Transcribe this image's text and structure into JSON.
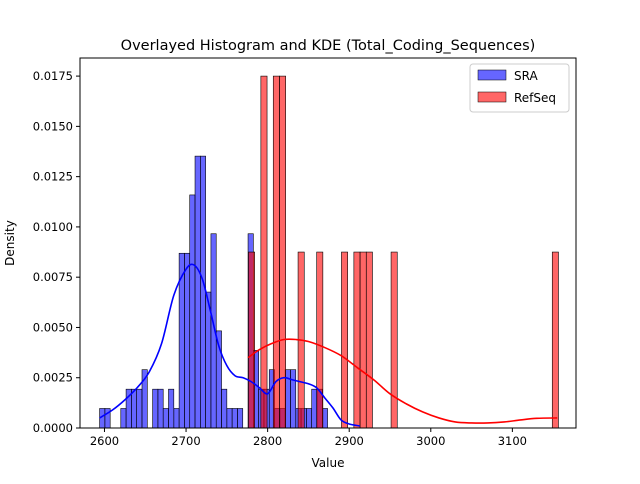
{
  "chart_data": {
    "type": "bar",
    "title": "Overlayed Histogram and KDE (Total_Coding_Sequences)",
    "xlabel": "Value",
    "ylabel": "Density",
    "xlim": [
      2570,
      3178
    ],
    "ylim": [
      0,
      0.0184
    ],
    "x_ticks": [
      2600,
      2700,
      2800,
      2900,
      3000,
      3100
    ],
    "x_tick_labels": [
      "2600",
      "2700",
      "2800",
      "2900",
      "3000",
      "3100"
    ],
    "y_ticks": [
      0,
      0.0025,
      0.005,
      0.0075,
      0.01,
      0.0125,
      0.015,
      0.0175
    ],
    "y_tick_labels": [
      "0.0000",
      "0.0025",
      "0.0050",
      "0.0075",
      "0.0100",
      "0.0125",
      "0.0150",
      "0.0175"
    ],
    "legend_position": "top-right",
    "series": [
      {
        "name": "SRA",
        "kind": "histogram",
        "color": "#0000ff",
        "fill_opacity": 0.6,
        "bin_width": 6.5,
        "bin_starts": [
          2594,
          2600.5,
          2620,
          2626.5,
          2633,
          2639.5,
          2646,
          2652.5,
          2659,
          2665.5,
          2672,
          2678.5,
          2685,
          2691.5,
          2698,
          2704.5,
          2711,
          2717.5,
          2724,
          2730.5,
          2737,
          2743.5,
          2750,
          2756.5,
          2763,
          2769.5,
          2776,
          2782.5,
          2789,
          2795.5,
          2802,
          2808.5,
          2815,
          2821.5,
          2828,
          2834.5,
          2841,
          2847.5,
          2854,
          2860.5,
          2867
        ],
        "values": [
          0.00097,
          0.00097,
          0.00097,
          0.00193,
          0.00193,
          0.00193,
          0.0029,
          0.0,
          0.00193,
          0.00193,
          0.00097,
          0.00193,
          0.00097,
          0.00869,
          0.00869,
          0.01159,
          0.01352,
          0.01352,
          0.00676,
          0.00966,
          0.00483,
          0.00193,
          0.00097,
          0.00097,
          0.00097,
          0.0,
          0.00966,
          0.00386,
          0.00193,
          0.00193,
          0.0029,
          0.00097,
          0.00097,
          0.0029,
          0.0029,
          0.00097,
          0.00097,
          0.00097,
          0.00193,
          0.00193,
          0.00097
        ],
        "kde": {
          "x": [
            2594,
            2610,
            2625,
            2640,
            2655,
            2670,
            2685,
            2700,
            2710,
            2720,
            2730,
            2740,
            2750,
            2760,
            2770,
            2780,
            2790,
            2800,
            2810,
            2820,
            2830,
            2840,
            2850,
            2860,
            2870,
            2880,
            2890,
            2900,
            2913
          ],
          "y": [
            0.0005,
            0.0009,
            0.0014,
            0.002,
            0.0028,
            0.0042,
            0.0066,
            0.0079,
            0.0081,
            0.0074,
            0.0058,
            0.0041,
            0.0031,
            0.0026,
            0.0025,
            0.0023,
            0.002,
            0.0017,
            0.0023,
            0.0025,
            0.0024,
            0.0023,
            0.0022,
            0.002,
            0.0015,
            0.001,
            0.0004,
            0.0002,
            0.0001
          ]
        }
      },
      {
        "name": "RefSeq",
        "kind": "histogram",
        "color": "#ff0000",
        "fill_opacity": 0.6,
        "bin_width": 7.6,
        "bin_starts": [
          2776.5,
          2791.7,
          2806.9,
          2814.5,
          2837.3,
          2860.1,
          2890.5,
          2905.7,
          2913.3,
          2920.9,
          2951.3,
          3148.9
        ],
        "values": [
          0.00875,
          0.0175,
          0.0175,
          0.0175,
          0.00875,
          0.00875,
          0.00875,
          0.00875,
          0.00875,
          0.00875,
          0.00875,
          0.00875
        ],
        "kde": {
          "x": [
            2776,
            2790,
            2805,
            2820,
            2835,
            2850,
            2870,
            2890,
            2910,
            2930,
            2950,
            2970,
            2990,
            3010,
            3030,
            3050,
            3070,
            3090,
            3110,
            3130,
            3155
          ],
          "y": [
            0.0035,
            0.0039,
            0.0042,
            0.0044,
            0.0044,
            0.0043,
            0.004,
            0.0036,
            0.003,
            0.0024,
            0.0017,
            0.0012,
            0.0008,
            0.0005,
            0.0003,
            0.00025,
            0.00025,
            0.0003,
            0.0004,
            0.00048,
            0.0005
          ]
        }
      }
    ]
  }
}
